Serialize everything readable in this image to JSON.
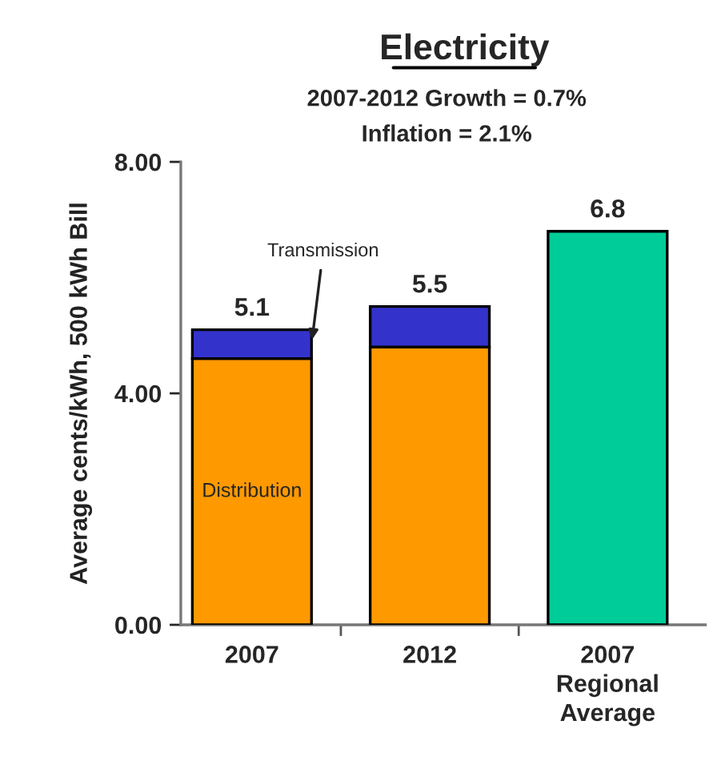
{
  "chart_data": {
    "type": "bar",
    "title": "Electricity",
    "ylabel": "Average cents/kWh, 500 kWh Bill",
    "categories": [
      "2007",
      "2012",
      "2007\nRegional\nAverage"
    ],
    "stacked": true,
    "series": [
      {
        "name": "Distribution",
        "color": "#ff9900",
        "values": [
          4.6,
          4.8,
          null
        ]
      },
      {
        "name": "Transmission",
        "color": "#3333cc",
        "values": [
          0.5,
          0.7,
          null
        ]
      },
      {
        "color": "#00cc99",
        "values": [
          null,
          null,
          6.8
        ]
      }
    ],
    "totals": [
      "5.1",
      "5.5",
      "6.8"
    ],
    "annotations": [
      "2007-2012 Growth = 0.7%",
      "Inflation = 2.1%"
    ],
    "ylim": [
      0,
      8
    ],
    "yticks": [
      {
        "value": 0,
        "label": "0.00"
      },
      {
        "value": 4,
        "label": "4.00"
      },
      {
        "value": 8,
        "label": "8.00"
      }
    ],
    "grid": false,
    "legend": false
  }
}
